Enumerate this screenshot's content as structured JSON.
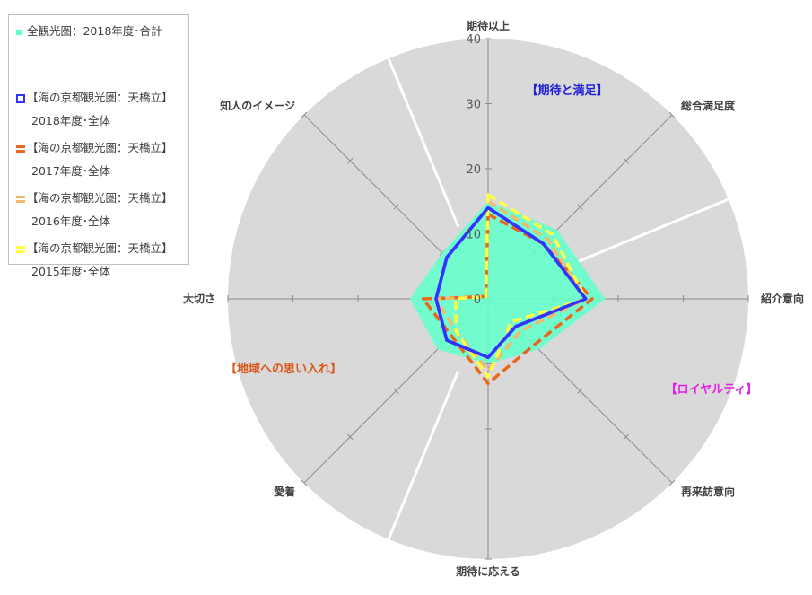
{
  "chart_data": {
    "type": "radar",
    "axes": [
      "期待以上",
      "総合満足度",
      "紹介意向",
      "再来訪意向",
      "期待に応える",
      "愛着",
      "大切さ",
      "知人のイメージ"
    ],
    "rlim": [
      0,
      40
    ],
    "ticks": [
      "0",
      "10",
      "20",
      "30",
      "40"
    ],
    "groups": [
      {
        "label": "【期待と満足】",
        "color": "#1f1fd6"
      },
      {
        "label": "【ロイヤルティ】",
        "color": "#e61ee6"
      },
      {
        "label": "【地域への思い入れ】",
        "color": "#d9581a"
      }
    ],
    "series": [
      {
        "name": "全観光圏：2018年度･合計",
        "name_line2": "",
        "style": "area",
        "color": "#66ffcc",
        "values": [
          15,
          15,
          18,
          11,
          10,
          11,
          12,
          10
        ]
      },
      {
        "name": "【海の京都観光圏：天橋立】",
        "name_line2": "2018年度･全体",
        "style": "solid",
        "color": "#3333ff",
        "values": [
          14,
          12,
          15,
          6,
          9,
          9,
          8,
          9
        ]
      },
      {
        "name": "【海の京都観光圏：天橋立】",
        "name_line2": "2017年度･全体",
        "style": "dash",
        "color": "#e8671a",
        "values": [
          13,
          12,
          16,
          10,
          13,
          8,
          10,
          0.5
        ]
      },
      {
        "name": "【海の京都観光圏：天橋立】",
        "name_line2": "2016年度･全体",
        "style": "dash",
        "color": "#f4b86b",
        "values": [
          15,
          13,
          15,
          7,
          11,
          7,
          8,
          0.5
        ]
      },
      {
        "name": "【海の京都観光圏：天橋立】",
        "name_line2": "2015年度･全体",
        "style": "dash",
        "color": "#ffff44",
        "values": [
          16,
          14,
          15,
          5,
          12,
          7,
          5,
          0.5
        ]
      }
    ]
  }
}
